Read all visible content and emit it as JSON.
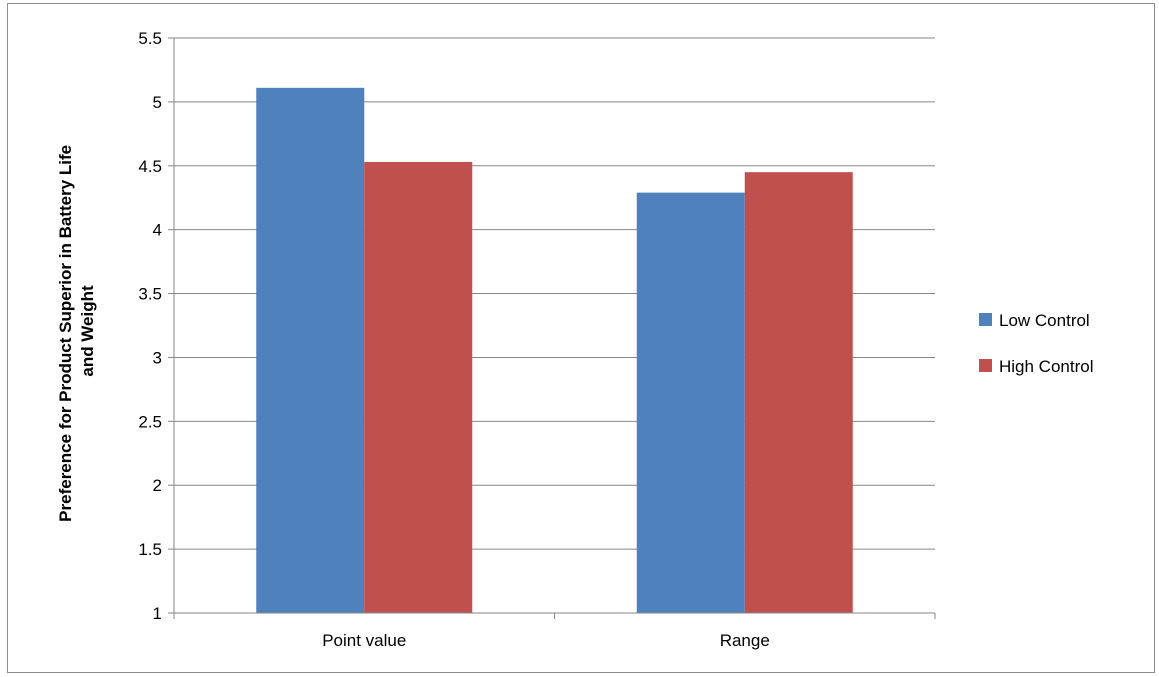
{
  "chart_data": {
    "type": "bar",
    "title": "",
    "xlabel": "",
    "ylabel": "Preference for Product Superior in Battery Life and Weight",
    "ylabel_lines": [
      "Preference for Product Superior in Battery Life",
      "and Weight"
    ],
    "categories": [
      "Point value",
      "Range"
    ],
    "series": [
      {
        "name": "Low Control",
        "color": "#4f81bd",
        "values": [
          5.11,
          4.29
        ]
      },
      {
        "name": "High Control",
        "color": "#c0504d",
        "values": [
          4.53,
          4.45
        ]
      }
    ],
    "ylim": [
      1,
      5.5
    ],
    "yticks": [
      1,
      1.5,
      2,
      2.5,
      3,
      3.5,
      4,
      4.5,
      5,
      5.5
    ],
    "ytick_labels": [
      "1",
      "1.5",
      "2",
      "2.5",
      "3",
      "3.5",
      "4",
      "4.5",
      "5",
      "5.5"
    ],
    "grid": true,
    "legend_position": "right",
    "colors": {
      "gridline": "#868686",
      "frame": "#8c8c8c",
      "text": "#000000"
    }
  }
}
